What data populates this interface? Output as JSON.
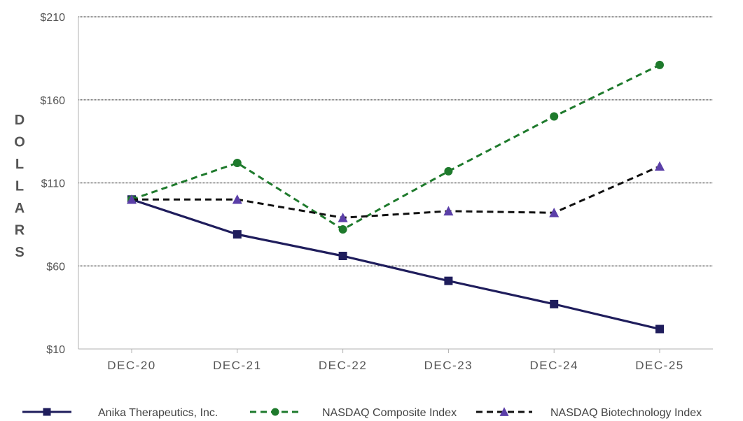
{
  "chart_data": {
    "type": "line",
    "categories": [
      "DEC-20",
      "DEC-21",
      "DEC-22",
      "DEC-23",
      "DEC-24",
      "DEC-25"
    ],
    "ylabel": "DOLLARS",
    "ylim": [
      10,
      210
    ],
    "yticks": [
      10,
      60,
      110,
      160,
      210
    ],
    "ytick_labels": [
      "$10",
      "$60",
      "$110",
      "$160",
      "$210"
    ],
    "grid": "horizontal",
    "legend_placement": "bottom",
    "series": [
      {
        "name": "Anika Therapeutics, Inc.",
        "values": [
          100,
          79,
          66,
          51,
          37,
          22
        ],
        "color": "#1f1d5c",
        "marker": "square",
        "dash": "solid"
      },
      {
        "name": "NASDAQ Composite Index",
        "values": [
          100,
          122,
          82,
          117,
          150,
          181
        ],
        "color": "#1e7a2c",
        "marker": "circle",
        "dash": "dashed"
      },
      {
        "name": "NASDAQ Biotechnology Index",
        "values": [
          100,
          100,
          89,
          93,
          92,
          120
        ],
        "color": "#111111",
        "marker_color": "#5b3fa8",
        "marker": "triangle",
        "dash": "dashed"
      }
    ]
  }
}
